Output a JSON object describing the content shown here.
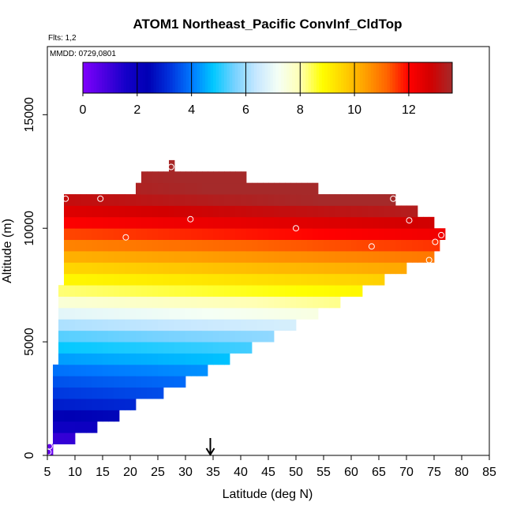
{
  "chart_data": {
    "type": "heatmap",
    "title": "ATOM1 Northeast_Pacific ConvInf_CldTop",
    "subtitle_flights": "Flts: 1,2",
    "subtitle_dates": "MMDD: 0729,0801",
    "xlabel": "Latitude (deg N)",
    "ylabel": "Altitude (m)",
    "xlim": [
      5,
      85
    ],
    "ylim": [
      0,
      18000
    ],
    "x_ticks": [
      "5",
      "10",
      "15",
      "20",
      "25",
      "30",
      "35",
      "40",
      "45",
      "50",
      "55",
      "60",
      "65",
      "70",
      "75",
      "80",
      "85"
    ],
    "y_ticks": [
      "0",
      "5000",
      "10000",
      "15000"
    ],
    "colorbar": {
      "min": 0,
      "max": 13.6,
      "ticks": [
        "0",
        "2",
        "4",
        "6",
        "8",
        "10",
        "12"
      ],
      "stops": [
        "#7f00ff",
        "#4b00e0",
        "#1400c8",
        "#0000b4",
        "#0032dc",
        "#0078ff",
        "#00c8ff",
        "#78d2ff",
        "#c8e8ff",
        "#f5fff5",
        "#ffffb4",
        "#ffff00",
        "#ffd200",
        "#ffa000",
        "#ff6400",
        "#ff0000",
        "#d20000",
        "#a52a2a"
      ]
    },
    "grid": false,
    "legend_position": "top",
    "marker_arrow_latitude": 34.5,
    "cell_size": {
      "lat": 1,
      "alt": 500
    },
    "column_bounds": [
      {
        "lat_from": 5,
        "lat_to": 6,
        "alt_min": 0,
        "alt_max": 500
      },
      {
        "lat_from": 6,
        "lat_to": 7,
        "alt_min": 500,
        "alt_max": 4000
      },
      {
        "lat_from": 7,
        "lat_to": 8,
        "alt_min": 500,
        "alt_max": 7500
      },
      {
        "lat_from": 8,
        "lat_to": 10,
        "alt_min": 500,
        "alt_max": 11500
      },
      {
        "lat_from": 10,
        "lat_to": 14,
        "alt_min": 1000,
        "alt_max": 11500
      },
      {
        "lat_from": 14,
        "lat_to": 18,
        "alt_min": 1500,
        "alt_max": 11500
      },
      {
        "lat_from": 18,
        "lat_to": 21,
        "alt_min": 2000,
        "alt_max": 11500
      },
      {
        "lat_from": 21,
        "lat_to": 22,
        "alt_min": 2500,
        "alt_max": 12000
      },
      {
        "lat_from": 22,
        "lat_to": 26,
        "alt_min": 2500,
        "alt_max": 12500
      },
      {
        "lat_from": 26,
        "lat_to": 27,
        "alt_min": 3000,
        "alt_max": 12500
      },
      {
        "lat_from": 27,
        "lat_to": 28,
        "alt_min": 3000,
        "alt_max": 13000
      },
      {
        "lat_from": 28,
        "lat_to": 30,
        "alt_min": 3000,
        "alt_max": 12500
      },
      {
        "lat_from": 30,
        "lat_to": 34,
        "alt_min": 3500,
        "alt_max": 12500
      },
      {
        "lat_from": 34,
        "lat_to": 38,
        "alt_min": 4000,
        "alt_max": 12500
      },
      {
        "lat_from": 38,
        "lat_to": 41,
        "alt_min": 4500,
        "alt_max": 12500
      },
      {
        "lat_from": 41,
        "lat_to": 42,
        "alt_min": 4500,
        "alt_max": 12000
      },
      {
        "lat_from": 42,
        "lat_to": 46,
        "alt_min": 5000,
        "alt_max": 12000
      },
      {
        "lat_from": 46,
        "lat_to": 50,
        "alt_min": 5500,
        "alt_max": 12000
      },
      {
        "lat_from": 50,
        "lat_to": 54,
        "alt_min": 6000,
        "alt_max": 12000
      },
      {
        "lat_from": 54,
        "lat_to": 58,
        "alt_min": 6500,
        "alt_max": 11500
      },
      {
        "lat_from": 58,
        "lat_to": 62,
        "alt_min": 7000,
        "alt_max": 11500
      },
      {
        "lat_from": 62,
        "lat_to": 66,
        "alt_min": 7500,
        "alt_max": 11500
      },
      {
        "lat_from": 66,
        "lat_to": 68,
        "alt_min": 8000,
        "alt_max": 11500
      },
      {
        "lat_from": 68,
        "lat_to": 70,
        "alt_min": 8000,
        "alt_max": 11000
      },
      {
        "lat_from": 70,
        "lat_to": 72,
        "alt_min": 8500,
        "alt_max": 11000
      },
      {
        "lat_from": 72,
        "lat_to": 74,
        "alt_min": 8500,
        "alt_max": 10500
      },
      {
        "lat_from": 74,
        "lat_to": 75,
        "alt_min": 8500,
        "alt_max": 10500
      },
      {
        "lat_from": 75,
        "lat_to": 76,
        "alt_min": 9000,
        "alt_max": 10000
      },
      {
        "lat_from": 76,
        "lat_to": 77,
        "alt_min": 9500,
        "alt_max": 10000
      }
    ],
    "value_by_altitude": [
      {
        "alt": 0,
        "value": 0.3
      },
      {
        "alt": 500,
        "value": 1.0
      },
      {
        "alt": 1000,
        "value": 1.8
      },
      {
        "alt": 1500,
        "value": 2.4
      },
      {
        "alt": 2000,
        "value": 2.9
      },
      {
        "alt": 2500,
        "value": 3.4
      },
      {
        "alt": 3000,
        "value": 3.7
      },
      {
        "alt": 3500,
        "value": 4.0
      },
      {
        "alt": 4000,
        "value": 4.4
      },
      {
        "alt": 4500,
        "value": 4.9
      },
      {
        "alt": 5000,
        "value": 5.3
      },
      {
        "alt": 5500,
        "value": 6.0
      },
      {
        "alt": 6000,
        "value": 6.8
      },
      {
        "alt": 6500,
        "value": 7.5
      },
      {
        "alt": 7000,
        "value": 8.2
      },
      {
        "alt": 7500,
        "value": 8.9
      },
      {
        "alt": 8000,
        "value": 9.5
      },
      {
        "alt": 8500,
        "value": 10.1
      },
      {
        "alt": 9000,
        "value": 10.7
      },
      {
        "alt": 9500,
        "value": 11.4
      },
      {
        "alt": 10000,
        "value": 12.0
      },
      {
        "alt": 10500,
        "value": 12.6
      },
      {
        "alt": 11000,
        "value": 13.1
      },
      {
        "alt": 11500,
        "value": 13.5
      },
      {
        "alt": 12000,
        "value": 13.6
      },
      {
        "alt": 12500,
        "value": 13.6
      }
    ],
    "observations": [
      {
        "lat": 5.2,
        "alt": 150
      },
      {
        "lat": 5.4,
        "alt": 400
      },
      {
        "lat": 8.3,
        "alt": 11300
      },
      {
        "lat": 14.6,
        "alt": 11300
      },
      {
        "lat": 19.2,
        "alt": 9600
      },
      {
        "lat": 27.4,
        "alt": 12700
      },
      {
        "lat": 30.9,
        "alt": 10400
      },
      {
        "lat": 50.0,
        "alt": 10000
      },
      {
        "lat": 63.7,
        "alt": 9200
      },
      {
        "lat": 67.6,
        "alt": 11300
      },
      {
        "lat": 70.5,
        "alt": 10350
      },
      {
        "lat": 74.1,
        "alt": 8600
      },
      {
        "lat": 75.2,
        "alt": 9400
      },
      {
        "lat": 76.3,
        "alt": 9700
      }
    ]
  }
}
